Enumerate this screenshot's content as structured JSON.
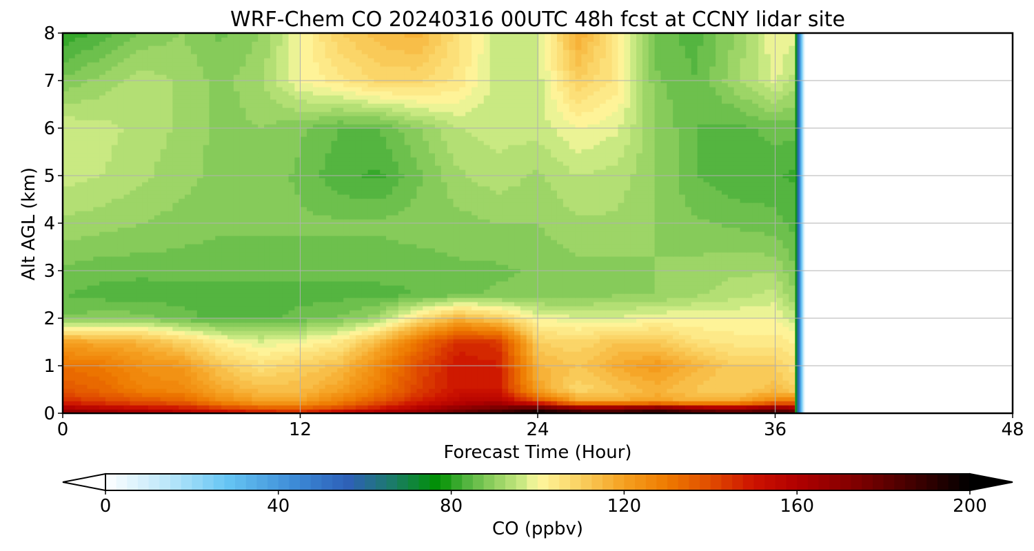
{
  "chart_data": {
    "type": "heatmap",
    "title": "WRF-Chem CO  20240316 00UTC 48h fcst at CCNY lidar site",
    "xlabel": "Forecast Time (Hour)",
    "ylabel": "Alt AGL (km)",
    "xlim": [
      0,
      48
    ],
    "ylim": [
      0,
      8
    ],
    "xticks": [
      "0",
      "12",
      "24",
      "36",
      "48"
    ],
    "yticks": [
      "0",
      "1",
      "2",
      "3",
      "4",
      "5",
      "6",
      "7",
      "8"
    ],
    "grid": true,
    "data_end_hour": 37.5,
    "colorbar": {
      "label": "CO  (ppbv)",
      "range": [
        0,
        200
      ],
      "extend": "both",
      "ticks": [
        "0",
        "40",
        "80",
        "120",
        "160",
        "200"
      ],
      "levels": 80,
      "stops": [
        {
          "v": 0,
          "c": "#ffffff"
        },
        {
          "v": 15,
          "c": "#b8e6fa"
        },
        {
          "v": 28,
          "c": "#66c6f4"
        },
        {
          "v": 45,
          "c": "#3a86d4"
        },
        {
          "v": 56,
          "c": "#2e60b8"
        },
        {
          "v": 66,
          "c": "#1c7a6c"
        },
        {
          "v": 73,
          "c": "#0a8a28"
        },
        {
          "v": 77,
          "c": "#009000"
        },
        {
          "v": 83,
          "c": "#4cb23c"
        },
        {
          "v": 90,
          "c": "#92d060"
        },
        {
          "v": 97,
          "c": "#d0ec86"
        },
        {
          "v": 100,
          "c": "#fff8a0"
        },
        {
          "v": 110,
          "c": "#fad060"
        },
        {
          "v": 120,
          "c": "#f5a020"
        },
        {
          "v": 130,
          "c": "#ee7a00"
        },
        {
          "v": 140,
          "c": "#e04c00"
        },
        {
          "v": 150,
          "c": "#cc1200"
        },
        {
          "v": 160,
          "c": "#b00000"
        },
        {
          "v": 175,
          "c": "#7a0000"
        },
        {
          "v": 188,
          "c": "#3c0000"
        },
        {
          "v": 200,
          "c": "#000000"
        }
      ]
    },
    "x": [
      0,
      2,
      4,
      6,
      8,
      10,
      12,
      14,
      16,
      18,
      20,
      22,
      24,
      26,
      28,
      30,
      32,
      34,
      36,
      37
    ],
    "y": [
      0,
      0.1,
      0.25,
      0.5,
      1,
      1.5,
      2,
      2.5,
      3,
      4,
      5,
      6,
      7,
      8
    ],
    "values": [
      [
        172,
        168,
        166,
        162,
        156,
        152,
        150,
        160,
        165,
        170,
        180,
        188,
        200,
        192,
        190,
        196,
        190,
        185,
        190,
        185
      ],
      [
        162,
        158,
        154,
        150,
        144,
        138,
        136,
        142,
        150,
        160,
        170,
        178,
        186,
        176,
        176,
        180,
        172,
        168,
        175,
        170
      ],
      [
        146,
        142,
        138,
        136,
        126,
        120,
        120,
        128,
        138,
        148,
        156,
        160,
        140,
        120,
        118,
        120,
        116,
        118,
        128,
        130
      ],
      [
        138,
        134,
        128,
        126,
        118,
        114,
        114,
        120,
        130,
        142,
        150,
        150,
        120,
        108,
        112,
        116,
        112,
        110,
        114,
        110
      ],
      [
        132,
        130,
        124,
        122,
        112,
        106,
        110,
        114,
        126,
        140,
        150,
        148,
        116,
        112,
        118,
        122,
        116,
        110,
        110,
        106
      ],
      [
        120,
        118,
        116,
        110,
        102,
        98,
        100,
        104,
        116,
        132,
        146,
        144,
        110,
        108,
        112,
        112,
        106,
        104,
        104,
        102
      ],
      [
        88,
        89,
        89,
        86,
        84,
        84,
        86,
        88,
        92,
        106,
        116,
        110,
        100,
        98,
        98,
        100,
        100,
        100,
        100,
        96
      ],
      [
        85,
        84,
        83,
        84,
        84,
        84,
        84,
        84,
        84,
        85,
        87,
        88,
        88,
        88,
        90,
        90,
        92,
        94,
        96,
        90
      ],
      [
        87,
        86,
        86,
        86,
        86,
        86,
        86,
        86,
        86,
        86,
        87,
        87,
        88,
        89,
        89,
        90,
        91,
        92,
        92,
        88
      ],
      [
        92,
        91,
        90,
        89,
        88,
        88,
        88,
        88,
        88,
        89,
        89,
        90,
        90,
        92,
        92,
        90,
        88,
        87,
        86,
        84
      ],
      [
        96,
        95,
        93,
        91,
        89,
        89,
        87,
        83,
        82,
        87,
        92,
        94,
        92,
        95,
        94,
        90,
        85,
        83,
        83,
        82
      ],
      [
        97,
        96,
        94,
        92,
        89,
        90,
        88,
        85,
        85,
        90,
        95,
        96,
        96,
        100,
        98,
        90,
        85,
        84,
        86,
        86
      ],
      [
        88,
        91,
        94,
        92,
        89,
        92,
        100,
        104,
        108,
        108,
        104,
        96,
        96,
        110,
        104,
        88,
        85,
        92,
        98,
        94
      ],
      [
        80,
        84,
        88,
        90,
        87,
        90,
        100,
        110,
        114,
        116,
        106,
        96,
        96,
        118,
        104,
        86,
        84,
        90,
        100,
        98
      ]
    ]
  }
}
